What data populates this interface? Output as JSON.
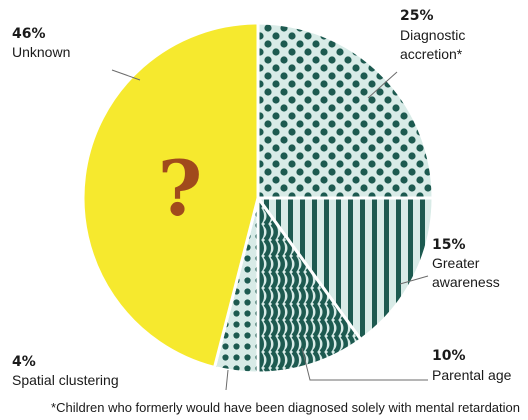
{
  "chart_data": {
    "type": "pie",
    "title": "",
    "slices": [
      {
        "name": "Diagnostic accretion*",
        "value": 25,
        "pct_label": "25%",
        "label_lines": [
          "Diagnostic",
          "accretion*"
        ],
        "pattern": "dots",
        "color": "#1d5a50"
      },
      {
        "name": "Greater awareness",
        "value": 15,
        "pct_label": "15%",
        "label_lines": [
          "Greater",
          "awareness"
        ],
        "pattern": "vertical-stripes",
        "color": "#1d5a50"
      },
      {
        "name": "Parental age",
        "value": 10,
        "pct_label": "10%",
        "label_lines": [
          "Parental age"
        ],
        "pattern": "waves",
        "color": "#1d5a50"
      },
      {
        "name": "Spatial clustering",
        "value": 4,
        "pct_label": "4%",
        "label_lines": [
          "Spatial clustering"
        ],
        "pattern": "small-dots",
        "color": "#1d5a50"
      },
      {
        "name": "Unknown",
        "value": 46,
        "pct_label": "46%",
        "label_lines": [
          "Unknown"
        ],
        "pattern": "solid",
        "color": "#f6e92e",
        "glyph": "?"
      }
    ],
    "footnote": "*Children who formerly would have been diagnosed solely with mental retardation",
    "colors": {
      "pattern_bg": "#d8ebe7",
      "pattern_ink": "#1d5a50",
      "unknown_fill": "#f6e92e",
      "glyph": "#a04a1c"
    }
  }
}
